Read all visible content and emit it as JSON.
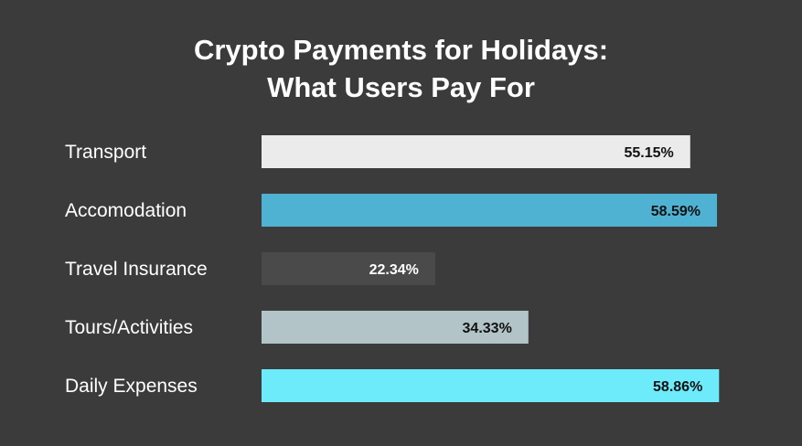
{
  "chart_data": {
    "type": "bar",
    "orientation": "horizontal",
    "title_lines": [
      "Crypto Payments for Holidays:",
      "What Users Pay For"
    ],
    "categories": [
      "Transport",
      "Accomodation",
      "Travel Insurance",
      "Tours/Activities",
      "Daily Expenses"
    ],
    "values": [
      55.15,
      58.59,
      22.34,
      34.33,
      58.86
    ],
    "value_labels": [
      "55.15%",
      "58.59%",
      "22.34%",
      "34.33%",
      "58.86%"
    ],
    "unit": "%",
    "colors": [
      "#ebebeb",
      "#4fb2d3",
      "#4a4a4a",
      "#b2c4c8",
      "#6eebfb"
    ],
    "label_colors": [
      "#111111",
      "#111111",
      "#ffffff",
      "#111111",
      "#111111"
    ],
    "background": "#3b3b3b",
    "grid": false,
    "axes_visible": false
  }
}
